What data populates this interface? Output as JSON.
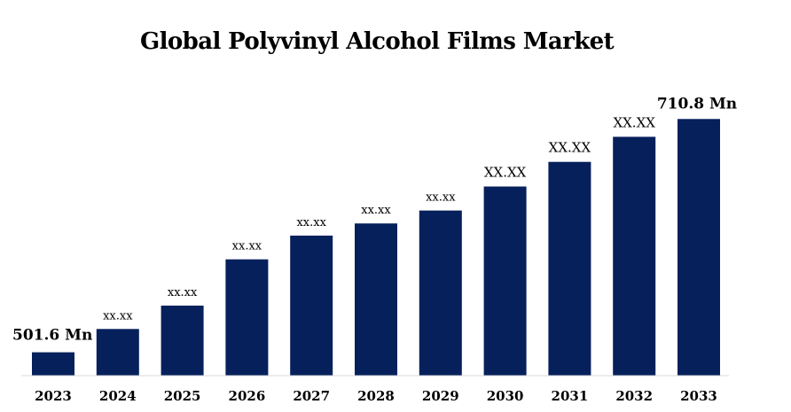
{
  "chart_data": {
    "type": "bar",
    "title": "Global Polyvinyl Alcohol Films Market",
    "categories": [
      "2023",
      "2024",
      "2025",
      "2026",
      "2027",
      "2028",
      "2029",
      "2030",
      "2031",
      "2032",
      "2033"
    ],
    "values": [
      501.6,
      522.5,
      543.4,
      584.9,
      606.2,
      617.1,
      628.7,
      650.2,
      672.3,
      694.8,
      710.8
    ],
    "data_labels": [
      "501.6 Mn",
      "xx.xx",
      "xx.xx",
      "xx.xx",
      "xx.xx",
      "xx.xx",
      "xx.xx",
      "XX.XX",
      "XX.XX",
      "XX.XX",
      "710.8 Mn"
    ],
    "ylim": [
      450,
      730
    ],
    "bar_color": "#06205c",
    "grid": false,
    "legend": "none"
  }
}
